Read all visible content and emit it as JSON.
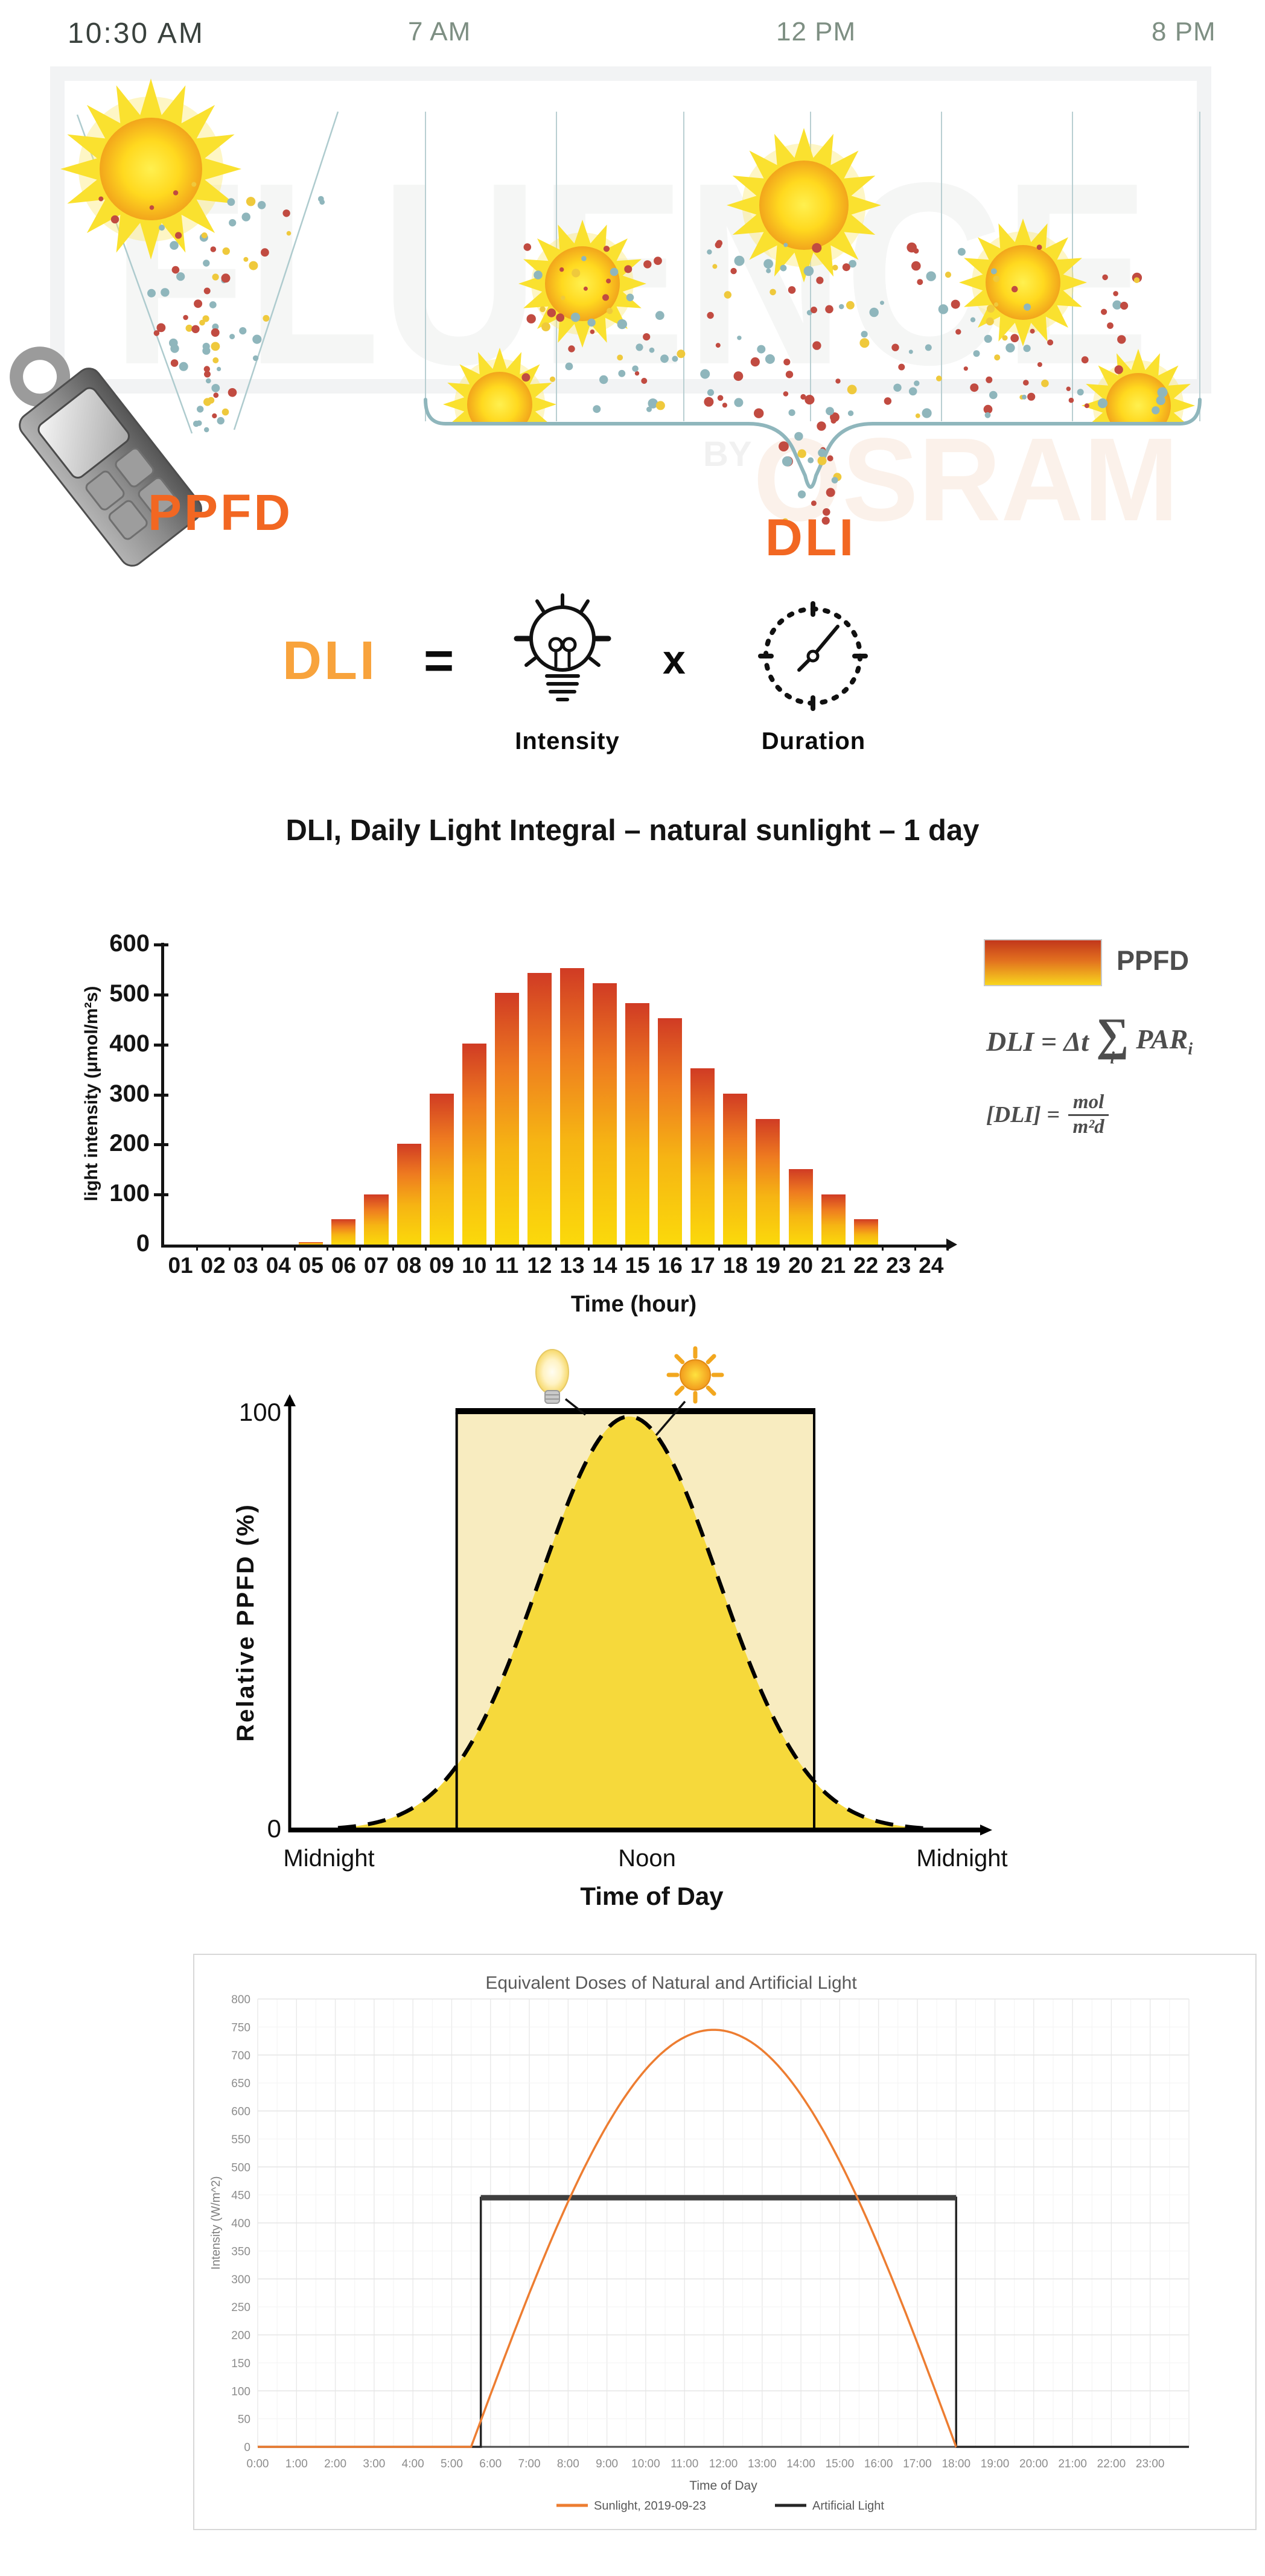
{
  "header": {
    "current_time": "10:30 AM",
    "timeline_hours": [
      "7 AM",
      "12 PM",
      "8 PM"
    ]
  },
  "illustration": {
    "watermark_brand": "FLUENCE",
    "watermark_by": "BY",
    "watermark_company": "OSRAM",
    "ppfd_label": "PPFD",
    "dli_label": "DLI",
    "colors": {
      "accent_orange": "#F26722",
      "teal_line": "#8FB6BC",
      "dot_teal": "#8FB6BC",
      "dot_red": "#C14B41",
      "dot_yellow": "#EFC93C"
    },
    "icons": [
      "sun-icon",
      "light-meter-icon",
      "curly-brace"
    ]
  },
  "formula": {
    "lhs": "DLI",
    "equals": "=",
    "times": "x",
    "intensity_label": "Intensity",
    "duration_label": "Duration",
    "icons": [
      "lightbulb-icon",
      "clock-icon"
    ]
  },
  "chart_data": [
    {
      "type": "bar",
      "title": "DLI, Daily Light Integral – natural sunlight – 1 day",
      "categories": [
        "01",
        "02",
        "03",
        "04",
        "05",
        "06",
        "07",
        "08",
        "09",
        "10",
        "11",
        "12",
        "13",
        "14",
        "15",
        "16",
        "17",
        "18",
        "19",
        "20",
        "21",
        "22",
        "23",
        "24"
      ],
      "values": [
        0,
        0,
        0,
        0,
        5,
        50,
        100,
        200,
        300,
        400,
        500,
        540,
        550,
        520,
        480,
        450,
        350,
        300,
        250,
        150,
        100,
        50,
        0,
        0
      ],
      "xlabel": "Time (hour)",
      "ylabel": "light intensity (μmol/m²s)",
      "yticks": [
        0,
        100,
        200,
        300,
        400,
        500,
        600
      ],
      "ylim": [
        0,
        600
      ],
      "grid": false,
      "legend_position": "top-right",
      "legend": [
        {
          "name": "PPFD",
          "swatch": "red-to-yellow-gradient"
        }
      ],
      "bar_gradient_top": "#D03B24",
      "bar_gradient_mid": "#EE7A20",
      "bar_gradient_bottom": "#FBD90B",
      "formula": {
        "main_pre": "DLI = Δt",
        "sigma": "∑",
        "sigma_sub": "i",
        "main_term": "PAR",
        "term_sub": "i",
        "unit_pre": "[DLI] =",
        "unit_num": "mol",
        "unit_den": "m²d"
      }
    },
    {
      "type": "area",
      "ylabel": "Relative PPFD (%)",
      "xlabel": "Time of Day",
      "ytick_top": "100",
      "ytick_bottom": "0",
      "ylim": [
        0,
        100
      ],
      "xticklabels": [
        "Midnight",
        "Noon",
        "Midnight"
      ],
      "series": [
        {
          "name": "artificial-light-rectangle",
          "shape": "rect",
          "level_pct": 100,
          "x_start_frac": 0.241,
          "x_end_frac": 0.757,
          "fill": "#F8ECC0"
        },
        {
          "name": "sunlight-curve",
          "shape": "gaussian",
          "peak_pct": 99,
          "center_frac": 0.49,
          "sigma_frac": 0.129,
          "fill": "#F6D93B"
        }
      ],
      "annotations": [
        {
          "icon": "lightbulb-emoji-icon",
          "target": "artificial-light-rectangle"
        },
        {
          "icon": "sun-emoji-icon",
          "target": "sunlight-curve"
        }
      ]
    },
    {
      "type": "line",
      "title": "Equivalent Doses of Natural and Artificial Light",
      "xlabel": "Time of Day",
      "ylabel": "Intensity (W/m^2)",
      "ylim": [
        0,
        800
      ],
      "yticks": [
        0,
        50,
        100,
        150,
        200,
        250,
        300,
        350,
        400,
        450,
        500,
        550,
        600,
        650,
        700,
        750,
        800
      ],
      "xticklabels": [
        "0:00",
        "1:00",
        "2:00",
        "3:00",
        "4:00",
        "5:00",
        "6:00",
        "7:00",
        "8:00",
        "9:00",
        "10:00",
        "11:00",
        "12:00",
        "13:00",
        "14:00",
        "15:00",
        "16:00",
        "17:00",
        "18:00",
        "19:00",
        "20:00",
        "21:00",
        "22:00",
        "23:00"
      ],
      "grid": true,
      "legend_position": "bottom",
      "series": [
        {
          "name": "Sunlight, 2019-09-23",
          "color": "#ED7D31",
          "shape": "solar",
          "sunrise": 5.5,
          "sunset": 18.0,
          "peak": 745
        },
        {
          "name": "Artificial Light",
          "color": "#262626",
          "shape": "step",
          "on": 5.75,
          "off": 18.0,
          "level": 445
        }
      ]
    }
  ]
}
